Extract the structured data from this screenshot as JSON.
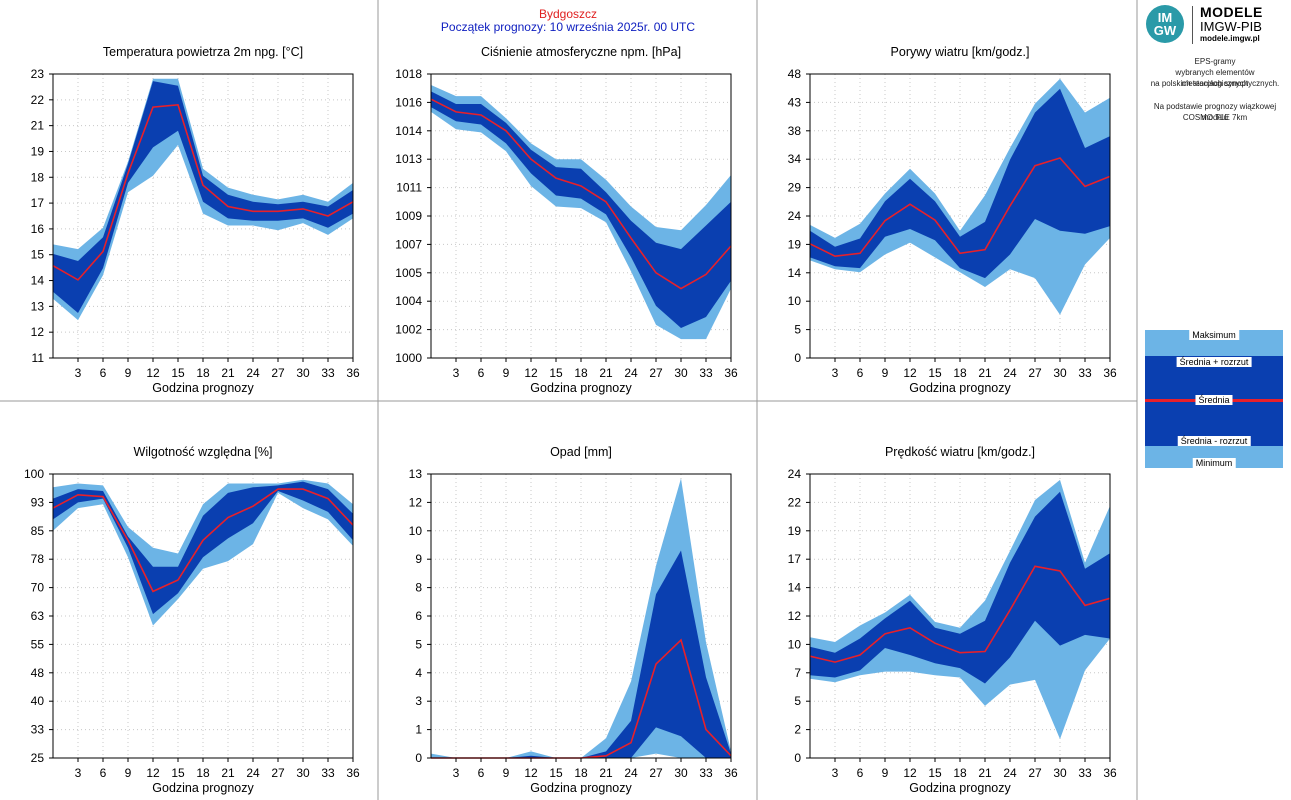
{
  "header": {
    "station": "Bydgoszcz",
    "forecast_start": "Początek prognozy: 10 września 2025r. 00 UTC"
  },
  "logo": {
    "mark": "IM GW",
    "line1": "MODELE",
    "line2": "IMGW-PIB",
    "line3": "modele.imgw.pl"
  },
  "info": {
    "line1": "EPS-gramy",
    "line2": "wybranych elementów meteorologicznych",
    "line3": "na polskich stacjach  synoptycznych.",
    "line4": "Na podstawie prognozy wiązkowej modelu",
    "line5": "COSMO TLE 7km"
  },
  "legend": {
    "max": "Maksimum",
    "mean_plus": "Średnia + rozrzut",
    "mean": "Średnia",
    "mean_minus": "Średnia - rozrzut",
    "min": "Minimum"
  },
  "colors": {
    "outer_band": "#6cb4e6",
    "inner_band": "#0a3fb0",
    "mean_line": "#e8202a",
    "grid": "#c8c8c8"
  },
  "chart_data": [
    {
      "type": "area",
      "title": "Temperatura powietrza 2m npg. [°C]",
      "xlabel": "Godzina prognozy",
      "x": [
        0,
        3,
        6,
        9,
        12,
        15,
        18,
        21,
        24,
        27,
        30,
        33,
        36
      ],
      "xticks": [
        "3",
        "6",
        "9",
        "12",
        "15",
        "18",
        "21",
        "24",
        "27",
        "30",
        "33",
        "36"
      ],
      "yticks": [
        "11",
        "12",
        "13",
        "14",
        "15",
        "16",
        "17",
        "18",
        "19",
        "21",
        "22",
        "23"
      ],
      "ylim": [
        11,
        23
      ],
      "min": [
        13.5,
        12.6,
        14.5,
        18.0,
        18.7,
        20.0,
        17.1,
        16.6,
        16.6,
        16.4,
        16.7,
        16.2,
        16.9
      ],
      "mean_minus": [
        13.8,
        12.9,
        14.8,
        18.4,
        19.9,
        20.6,
        17.6,
        16.9,
        16.8,
        16.8,
        16.9,
        16.5,
        17.1
      ],
      "mean": [
        14.9,
        14.3,
        15.5,
        18.8,
        21.6,
        21.7,
        18.3,
        17.4,
        17.2,
        17.2,
        17.3,
        17.0,
        17.6
      ],
      "mean_plus": [
        15.4,
        15.1,
        16.1,
        19.2,
        22.7,
        22.5,
        18.7,
        17.9,
        17.6,
        17.5,
        17.6,
        17.4,
        18.1
      ],
      "max": [
        15.8,
        15.6,
        16.5,
        19.3,
        22.8,
        22.8,
        19.0,
        18.2,
        17.9,
        17.7,
        17.9,
        17.6,
        18.4
      ]
    },
    {
      "type": "area",
      "title": "Ciśnienie atmosferyczne npm. [hPa]",
      "xlabel": "Godzina prognozy",
      "x": [
        0,
        3,
        6,
        9,
        12,
        15,
        18,
        21,
        24,
        27,
        30,
        33,
        36
      ],
      "xticks": [
        "3",
        "6",
        "9",
        "12",
        "15",
        "18",
        "21",
        "24",
        "27",
        "30",
        "33",
        "36"
      ],
      "yticks": [
        "1000",
        "1002",
        "1004",
        "1005",
        "1007",
        "1009",
        "1011",
        "1013",
        "1014",
        "1016",
        "1018"
      ],
      "ylim": [
        1000,
        1018
      ],
      "min": [
        1015.6,
        1014.5,
        1014.3,
        1013.1,
        1010.9,
        1009.6,
        1009.5,
        1008.6,
        1005.5,
        1002.1,
        1001.2,
        1001.2,
        1004.4
      ],
      "mean_minus": [
        1015.9,
        1015.0,
        1014.8,
        1013.6,
        1011.7,
        1010.3,
        1010.1,
        1009.1,
        1006.4,
        1003.3,
        1001.9,
        1002.6,
        1004.9
      ],
      "mean": [
        1016.4,
        1015.6,
        1015.4,
        1014.4,
        1012.6,
        1011.4,
        1010.9,
        1009.9,
        1007.6,
        1005.4,
        1004.4,
        1005.3,
        1007.1
      ],
      "mean_plus": [
        1016.9,
        1016.1,
        1016.1,
        1014.9,
        1013.2,
        1012.1,
        1012.0,
        1010.5,
        1008.7,
        1007.3,
        1006.9,
        1008.4,
        1009.9
      ],
      "max": [
        1017.3,
        1016.6,
        1016.6,
        1015.2,
        1013.6,
        1012.6,
        1012.6,
        1011.3,
        1009.6,
        1008.3,
        1008.1,
        1009.7,
        1011.6
      ]
    },
    {
      "type": "area",
      "title": "Porywy wiatru [km/godz.]",
      "xlabel": "Godzina prognozy",
      "x": [
        0,
        3,
        6,
        9,
        12,
        15,
        18,
        21,
        24,
        27,
        30,
        33,
        36
      ],
      "xticks": [
        "3",
        "6",
        "9",
        "12",
        "15",
        "18",
        "21",
        "24",
        "27",
        "30",
        "33",
        "36"
      ],
      "yticks": [
        "0",
        "5",
        "10",
        "14",
        "19",
        "24",
        "29",
        "34",
        "38",
        "43",
        "48"
      ],
      "ylim": [
        0,
        48
      ],
      "min": [
        16.5,
        15.0,
        14.5,
        17.5,
        19.5,
        17.0,
        14.5,
        12.0,
        15.0,
        13.5,
        7.3,
        15.8,
        20.3
      ],
      "mean_minus": [
        17.0,
        15.5,
        15.2,
        20.5,
        21.8,
        19.9,
        15.2,
        13.5,
        17.5,
        23.5,
        21.5,
        21.0,
        22.3
      ],
      "mean": [
        19.3,
        17.2,
        17.7,
        23.2,
        26.0,
        23.3,
        17.7,
        18.3,
        25.7,
        32.5,
        33.8,
        29.0,
        30.7
      ],
      "mean_plus": [
        21.5,
        18.8,
        20.2,
        26.5,
        30.3,
        26.5,
        20.5,
        23.0,
        33.5,
        41.5,
        45.5,
        35.5,
        37.5
      ],
      "max": [
        22.5,
        20.3,
        22.7,
        27.8,
        32.0,
        27.8,
        21.5,
        27.5,
        35.5,
        43.0,
        47.2,
        41.5,
        44.0
      ]
    },
    {
      "type": "area",
      "title": "Wilgotność względna [%]",
      "xlabel": "Godzina prognozy",
      "x": [
        0,
        3,
        6,
        9,
        12,
        15,
        18,
        21,
        24,
        27,
        30,
        33,
        36
      ],
      "xticks": [
        "3",
        "6",
        "9",
        "12",
        "15",
        "18",
        "21",
        "24",
        "27",
        "30",
        "33",
        "36"
      ],
      "yticks": [
        "25",
        "33",
        "40",
        "48",
        "55",
        "63",
        "70",
        "78",
        "85",
        "93",
        "100"
      ],
      "ylim": [
        25,
        100
      ],
      "min": [
        85.0,
        91.0,
        92.0,
        78.0,
        60.0,
        67.0,
        75.0,
        77.0,
        81.5,
        95.0,
        91.0,
        88.0,
        81.0
      ],
      "mean_minus": [
        88.0,
        92.5,
        93.5,
        80.5,
        63.0,
        68.5,
        78.0,
        83.0,
        87.0,
        95.5,
        93.0,
        90.0,
        82.5
      ],
      "mean": [
        91.0,
        94.5,
        94.0,
        82.5,
        69.0,
        72.0,
        82.5,
        88.5,
        91.5,
        96.0,
        96.0,
        93.5,
        86.5
      ],
      "mean_plus": [
        93.5,
        96.0,
        95.5,
        83.5,
        75.5,
        75.5,
        89.0,
        95.0,
        96.5,
        97.0,
        98.0,
        96.0,
        89.5
      ],
      "max": [
        96.5,
        97.5,
        97.0,
        86.0,
        80.5,
        79.0,
        92.0,
        97.5,
        97.5,
        97.5,
        98.5,
        97.5,
        92.0
      ]
    },
    {
      "type": "area",
      "title": "Opad [mm]",
      "xlabel": "Godzina prognozy",
      "x": [
        0,
        3,
        6,
        9,
        12,
        15,
        18,
        21,
        24,
        27,
        30,
        33,
        36
      ],
      "xticks": [
        "3",
        "6",
        "9",
        "12",
        "15",
        "18",
        "21",
        "24",
        "27",
        "30",
        "33",
        "36"
      ],
      "yticks": [
        "0",
        "1",
        "3",
        "4",
        "5",
        "6",
        "8",
        "9",
        "10",
        "12",
        "13"
      ],
      "ylim": [
        0,
        13
      ],
      "min": [
        0,
        0,
        0,
        0,
        0,
        0,
        0,
        0,
        0,
        0.2,
        0,
        0,
        0
      ],
      "mean_minus": [
        0,
        0,
        0,
        0,
        0,
        0,
        0,
        0,
        0,
        1.4,
        1.0,
        0,
        0
      ],
      "mean": [
        0,
        0,
        0,
        0,
        0,
        0,
        0,
        0.1,
        0.7,
        4.3,
        5.4,
        1.3,
        0.1
      ],
      "mean_plus": [
        0,
        0,
        0,
        0,
        0.1,
        0,
        0,
        0.3,
        1.7,
        7.5,
        9.5,
        3.7,
        0.2
      ],
      "max": [
        0.2,
        0,
        0,
        0,
        0.3,
        0,
        0,
        0.9,
        3.5,
        8.8,
        12.8,
        5.3,
        0.3
      ]
    },
    {
      "type": "area",
      "title": "Prędkość wiatru [km/godz.]",
      "xlabel": "Godzina prognozy",
      "x": [
        0,
        3,
        6,
        9,
        12,
        15,
        18,
        21,
        24,
        27,
        30,
        33,
        36
      ],
      "xticks": [
        "3",
        "6",
        "9",
        "12",
        "15",
        "18",
        "21",
        "24",
        "27",
        "30",
        "33",
        "36"
      ],
      "yticks": [
        "0",
        "2",
        "5",
        "7",
        "10",
        "12",
        "14",
        "17",
        "19",
        "22",
        "24"
      ],
      "ylim": [
        0,
        24
      ],
      "min": [
        6.7,
        6.4,
        7.0,
        7.3,
        7.3,
        7.0,
        6.8,
        4.4,
        6.2,
        6.6,
        1.6,
        7.4,
        10.1
      ],
      "mean_minus": [
        7.0,
        6.8,
        7.4,
        9.3,
        8.7,
        8.0,
        7.6,
        6.3,
        8.5,
        11.6,
        9.5,
        10.4,
        10.1
      ],
      "mean": [
        8.6,
        8.1,
        8.7,
        10.5,
        11.0,
        9.7,
        8.9,
        9.0,
        12.5,
        16.2,
        15.8,
        12.9,
        13.5
      ],
      "mean_plus": [
        9.4,
        8.9,
        10.1,
        11.8,
        13.3,
        11.0,
        10.5,
        11.6,
        16.5,
        20.4,
        22.5,
        16.0,
        17.3
      ],
      "max": [
        10.2,
        9.8,
        11.2,
        12.3,
        13.8,
        11.5,
        11.0,
        13.3,
        17.5,
        21.8,
        23.5,
        16.5,
        21.3
      ]
    }
  ]
}
